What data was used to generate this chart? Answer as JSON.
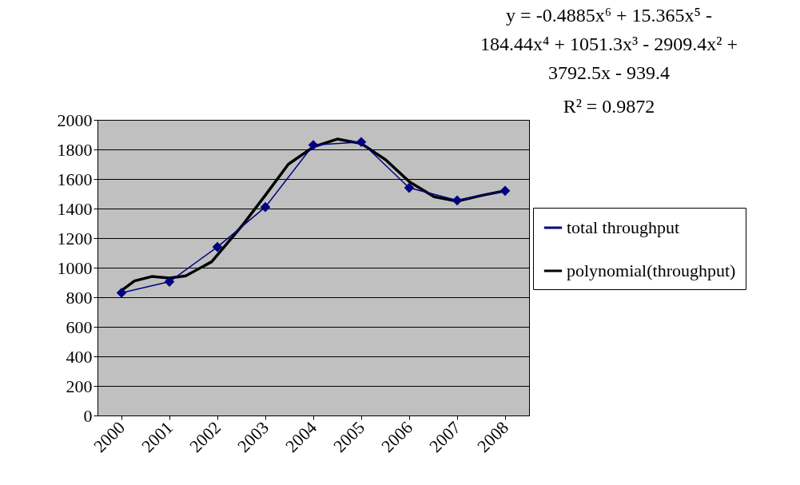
{
  "chart_data": {
    "type": "line",
    "x": [
      2000,
      2001,
      2002,
      2003,
      2004,
      2005,
      2006,
      2007,
      2008
    ],
    "xlim": [
      1999.5,
      2008.5
    ],
    "xticks": [
      2000,
      2001,
      2002,
      2003,
      2004,
      2005,
      2006,
      2007,
      2008
    ],
    "ylim": [
      0,
      2000
    ],
    "yticks": [
      0,
      200,
      400,
      600,
      800,
      1000,
      1200,
      1400,
      1600,
      1800,
      2000
    ],
    "grid": "y",
    "legend": "right",
    "marker": "diamond",
    "series": [
      {
        "name": "total throughput",
        "color": "#000080",
        "values": [
          830,
          905,
          1140,
          1410,
          1830,
          1850,
          1540,
          1455,
          1520
        ]
      },
      {
        "name": "polynomial(throughput)",
        "type": "line",
        "marker": "none",
        "color": "#000000",
        "x": [
          2000,
          2000.27,
          2000.63,
          2001,
          2001.34,
          2001.88,
          2002.53,
          2003,
          2003.48,
          2004.02,
          2004.5,
          2005,
          2005.51,
          2006.01,
          2006.52,
          2007,
          2007.53,
          2008
        ],
        "values": [
          845,
          910,
          940,
          930,
          945,
          1040,
          1290,
          1490,
          1700,
          1820,
          1870,
          1840,
          1730,
          1580,
          1480,
          1450,
          1490,
          1520
        ]
      }
    ],
    "annotations": [
      "y = -0.4885x⁶ + 15.365x⁵ - 184.44x⁴ + 1051.3x³ - 2909.4x² + 3792.5x - 939.4",
      "R² = 0.9872"
    ]
  }
}
